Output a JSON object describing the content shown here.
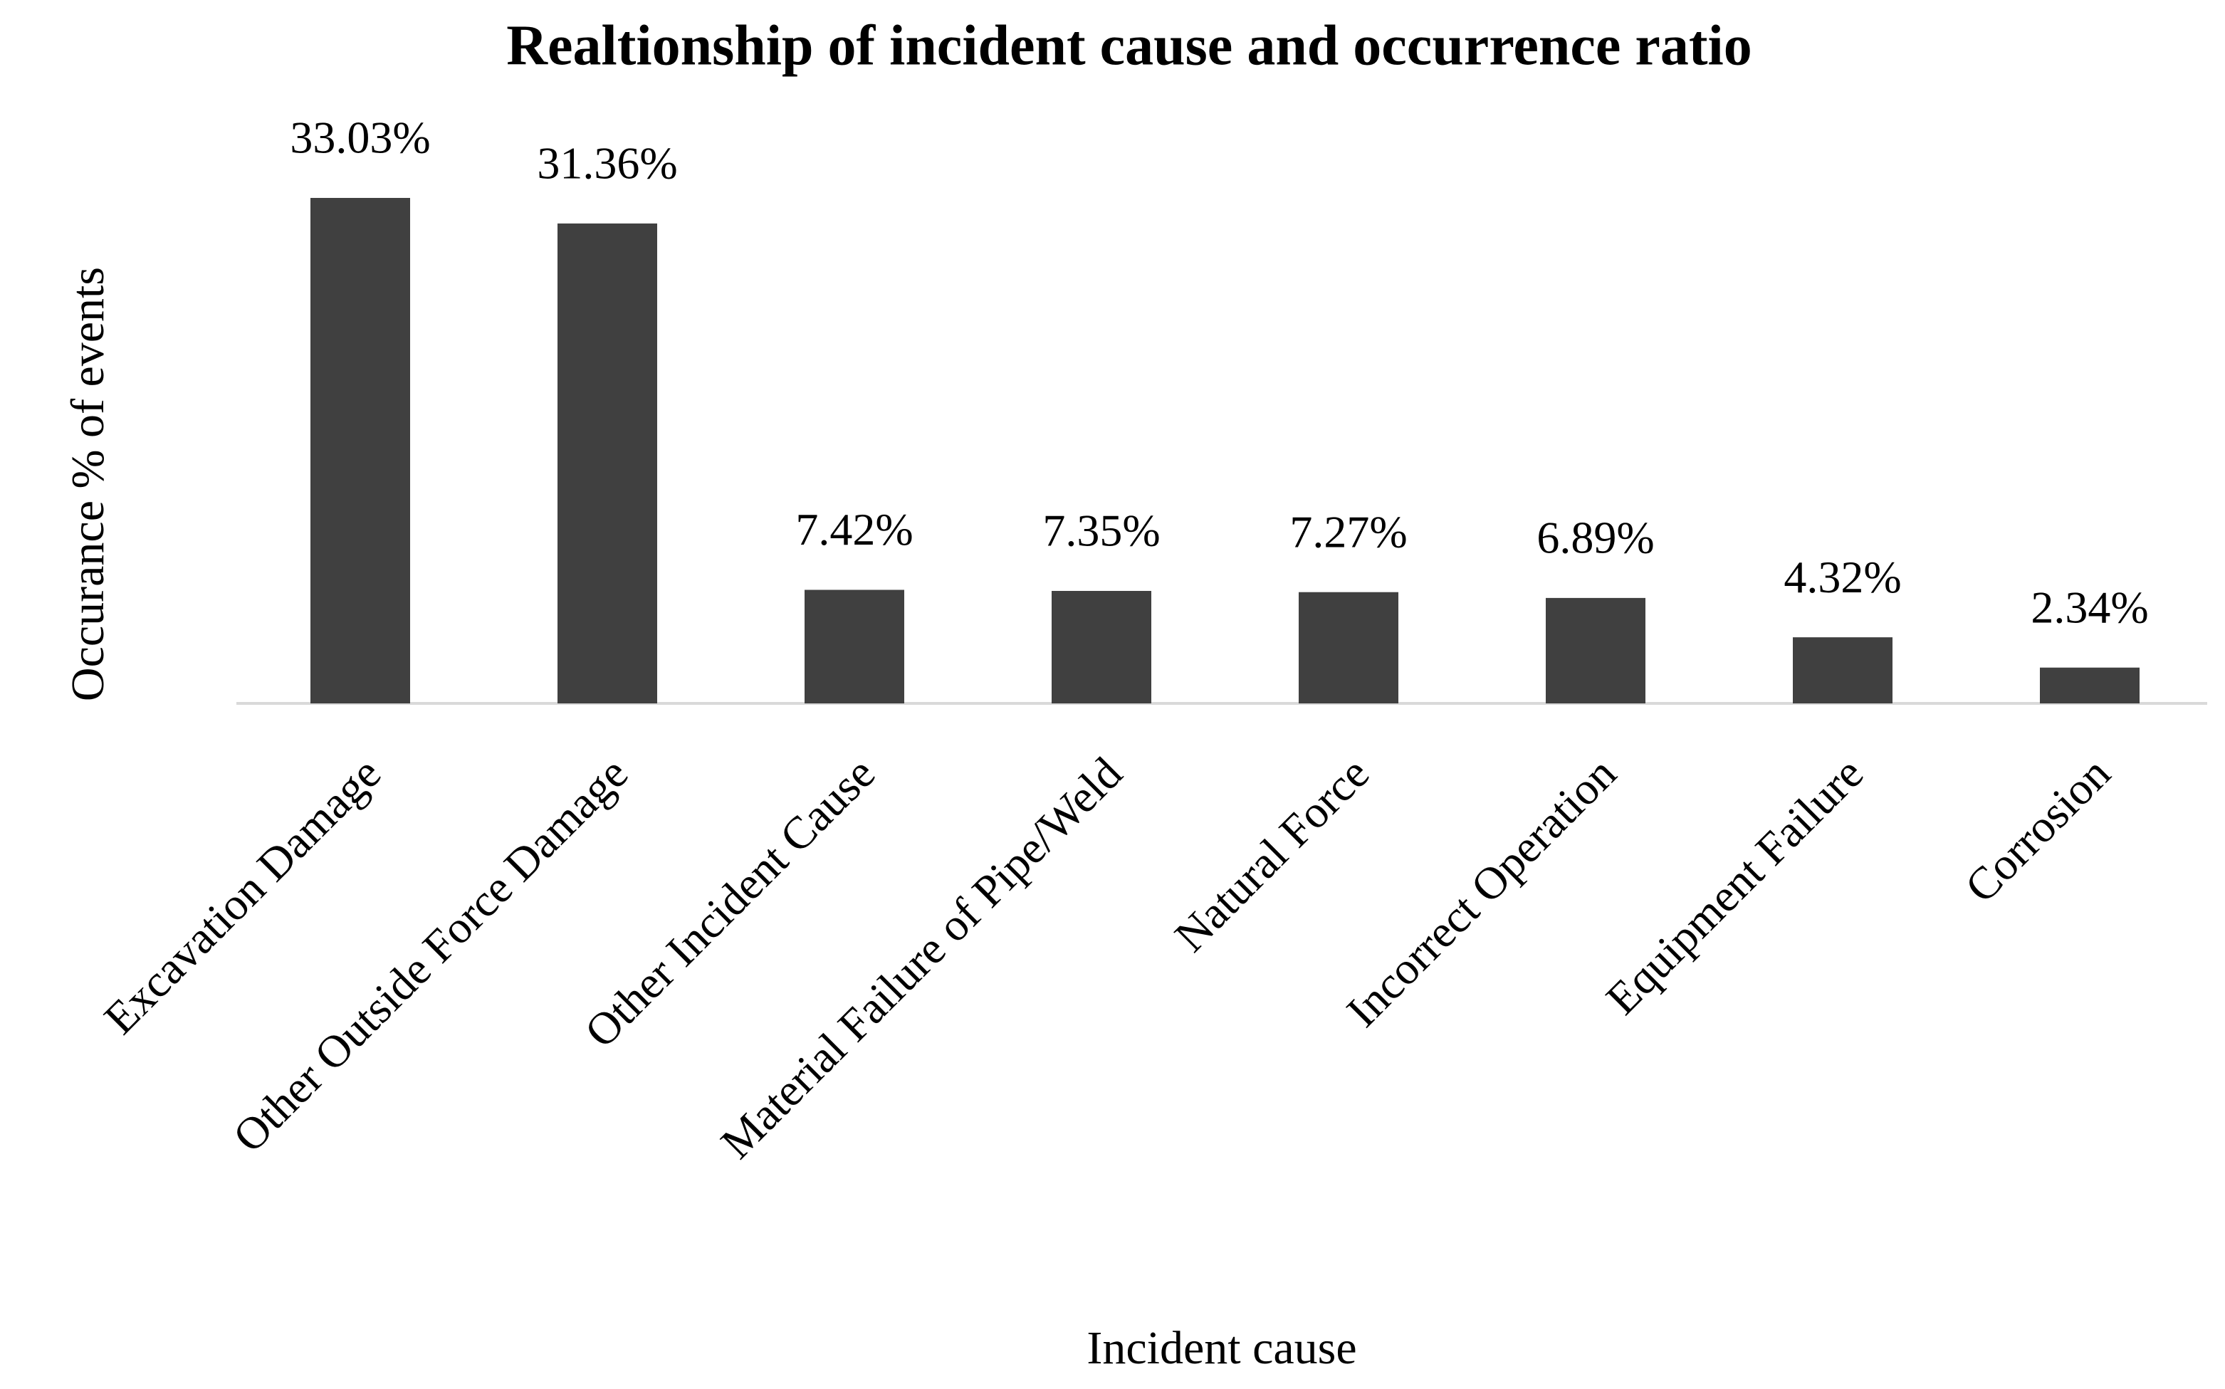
{
  "chart_data": {
    "type": "bar",
    "title": "Realtionship of incident cause and occurrence ratio",
    "x_label": "Incident cause",
    "y_label": "Occurance % of events",
    "categories": [
      "Excavation Damage",
      "Other Outside Force Damage",
      "Other Incident Cause",
      "Material Failure of Pipe/Weld",
      "Natural Force",
      "Incorrect Operation",
      "Equipment Failure",
      "Corrosion"
    ],
    "values": [
      33.03,
      31.36,
      7.42,
      7.35,
      7.27,
      6.89,
      4.32,
      2.34
    ],
    "value_labels": [
      "33.03%",
      "31.36%",
      "7.42%",
      "7.35%",
      "7.27%",
      "6.89%",
      "4.32%",
      "2.34%"
    ],
    "color": "#404040",
    "grid": false
  }
}
